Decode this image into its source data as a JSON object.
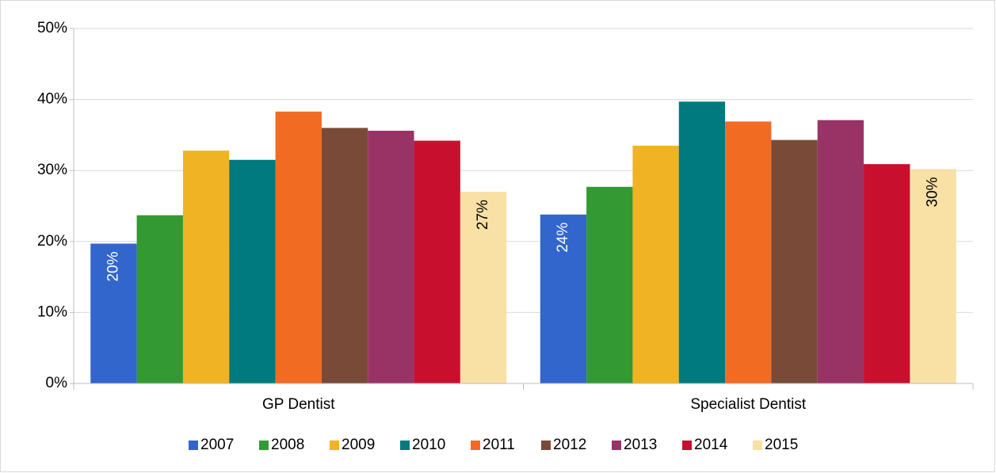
{
  "chart_data": {
    "type": "bar",
    "categories": [
      "GP Dentist",
      "Specialist Dentist"
    ],
    "series": [
      {
        "name": "2007",
        "color": "#3366cc",
        "values": [
          19.7,
          23.8
        ],
        "value_labels": [
          "20%",
          "24%"
        ]
      },
      {
        "name": "2008",
        "color": "#339933",
        "values": [
          23.7,
          27.7
        ]
      },
      {
        "name": "2009",
        "color": "#f0b323",
        "values": [
          32.8,
          33.5
        ]
      },
      {
        "name": "2010",
        "color": "#007a7e",
        "values": [
          31.5,
          39.7
        ]
      },
      {
        "name": "2011",
        "color": "#f26b22",
        "values": [
          38.3,
          36.9
        ]
      },
      {
        "name": "2012",
        "color": "#7a4a38",
        "values": [
          36.0,
          34.3
        ]
      },
      {
        "name": "2013",
        "color": "#993366",
        "values": [
          35.6,
          37.1
        ]
      },
      {
        "name": "2014",
        "color": "#c8102e",
        "values": [
          34.2,
          30.9
        ]
      },
      {
        "name": "2015",
        "color": "#f9e0a5",
        "values": [
          27.0,
          30.2
        ],
        "value_labels": [
          "27%",
          "30%"
        ]
      }
    ],
    "ylim": [
      0,
      50
    ],
    "yticks": [
      {
        "value": 0,
        "label": "0%"
      },
      {
        "value": 10,
        "label": "10%"
      },
      {
        "value": 20,
        "label": "20%"
      },
      {
        "value": 30,
        "label": "30%"
      },
      {
        "value": 40,
        "label": "40%"
      },
      {
        "value": 50,
        "label": "50%"
      }
    ],
    "grid": true,
    "legend": "bottom"
  }
}
